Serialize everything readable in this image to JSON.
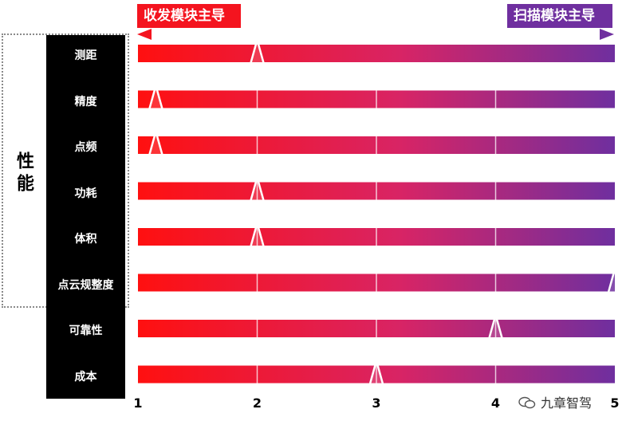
{
  "chart_data": {
    "type": "bar",
    "title": "",
    "scale_left": "收发模块主导",
    "scale_right": "扫描模块主导",
    "group_label": "性能",
    "xlim": [
      1,
      5
    ],
    "ticks": [
      "1",
      "2",
      "3",
      "4",
      "5"
    ],
    "categories": [
      "测距",
      "精度",
      "点频",
      "功耗",
      "体积",
      "点云规整度",
      "可靠性",
      "成本"
    ],
    "values": [
      2,
      1.15,
      1.15,
      2,
      2,
      5,
      4,
      3
    ],
    "group_members": [
      "测距",
      "精度",
      "点频",
      "功耗",
      "体积",
      "点云规整度"
    ],
    "gradient": [
      "#ff1010",
      "#6f2f9f"
    ]
  },
  "watermark": "九章智驾"
}
